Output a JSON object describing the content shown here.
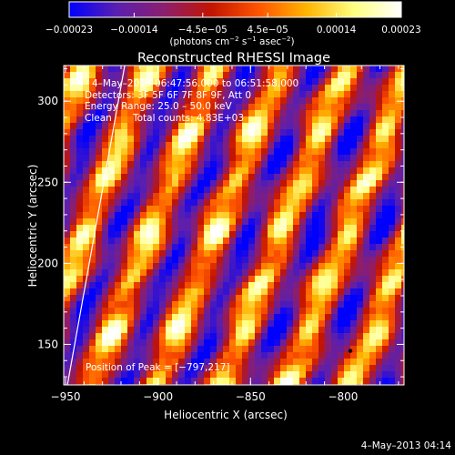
{
  "chart_data": {
    "type": "heatmap",
    "title": "Reconstructed RHESSI Image",
    "xlabel": "Heliocentric X (arcsec)",
    "ylabel": "Heliocentric Y (arcsec)",
    "xlim": [
      -951,
      -767
    ],
    "ylim": [
      125,
      322
    ],
    "x_ticks": [
      -950,
      -900,
      -850,
      -800
    ],
    "x_tick_labels": [
      "−950",
      "−900",
      "−850",
      "−800"
    ],
    "y_ticks": [
      150,
      200,
      250,
      300
    ],
    "y_tick_labels": [
      "150",
      "200",
      "250",
      "300"
    ],
    "annotations": {
      "time_range": "4–May–2013 06:47:56.000 to 06:51:58.000",
      "detectors": "Detectors: 3F 5F 6F 7F 8F 9F, Att 0",
      "energy_range": "Energy Range: 25.0 – 50.0 keV",
      "algorithm": "Clean",
      "total_counts": "Total counts: 4.83E+03",
      "peak_position": "Position of Peak = [−797,217]"
    },
    "peak": [
      -797,
      217
    ],
    "colorbar": {
      "range": [
        -0.00023,
        0.00023
      ],
      "tick_values": [
        -0.00023,
        -0.00014,
        -4.5e-05,
        4.5e-05,
        0.00014,
        0.00023
      ],
      "tick_labels": [
        "−0.00023",
        "−0.00014",
        "−4.5e−05",
        "4.5e−05",
        "0.00014",
        "0.00023"
      ],
      "unit_label": "(photons cm",
      "unit_exp1": "−2",
      "unit_mid": " s",
      "unit_exp2": "−1",
      "unit_end": " asec",
      "unit_exp3": "−2",
      "unit_close": ")",
      "colormap": [
        "#0000ff",
        "#5a1fb0",
        "#8c1e6e",
        "#c31400",
        "#ff5500",
        "#ffb400",
        "#ffff80",
        "#ffffff"
      ]
    },
    "limb_line": [
      [
        -949,
        125
      ],
      [
        -918,
        322
      ]
    ]
  },
  "footer": {
    "timestamp": "4–May–2013 04:14"
  }
}
